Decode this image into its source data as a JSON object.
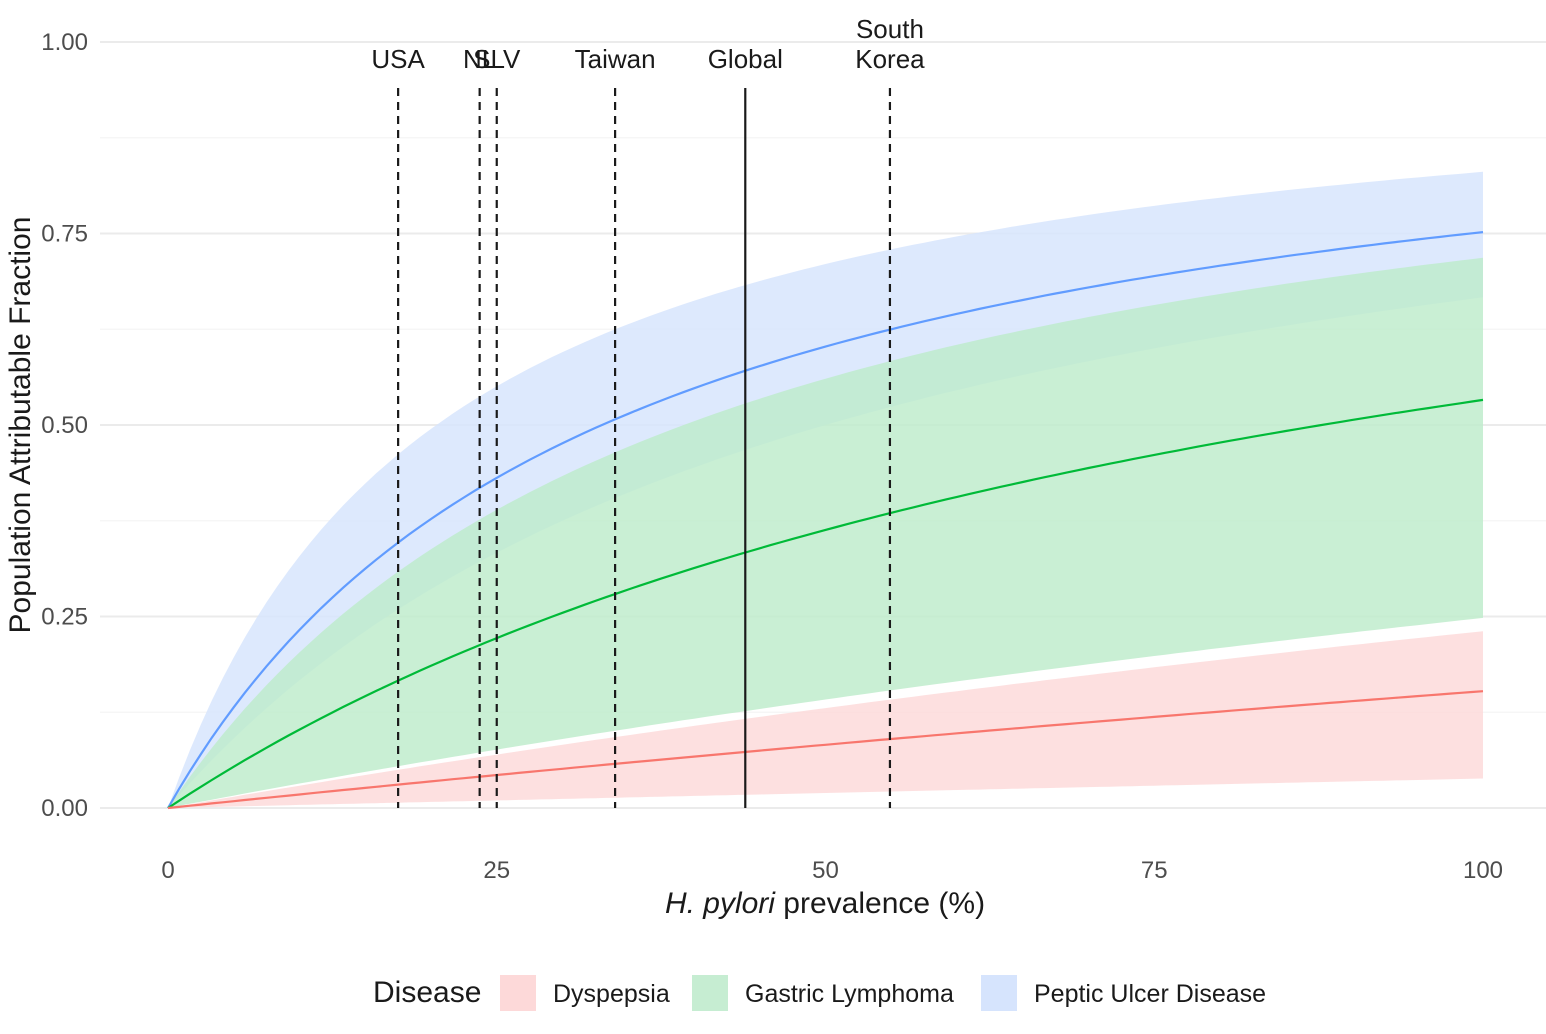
{
  "chart_data": {
    "type": "area",
    "title": "",
    "xlabel_italic": "H. pylori",
    "xlabel_rest": " prevalence (%)",
    "ylabel": "Population Attributable Fraction",
    "xlim": [
      0,
      100
    ],
    "ylim": [
      0,
      1
    ],
    "x_ticks": [
      0,
      25,
      50,
      75,
      100
    ],
    "x_tick_labels": [
      "0",
      "25",
      "50",
      "75",
      "100"
    ],
    "y_ticks": [
      0,
      0.25,
      0.5,
      0.75,
      1.0
    ],
    "y_tick_labels": [
      "0.00",
      "0.25",
      "0.50",
      "0.75",
      "1.00"
    ],
    "grid": true,
    "series": [
      {
        "name": "Peptic Ulcer Disease",
        "line_color": "#619CFF",
        "fill_color": "#D6E4FD",
        "rr": 4.03,
        "rr_lower": 3.0,
        "rr_upper": 5.9
      },
      {
        "name": "Gastric Lymphoma",
        "line_color": "#00BA38",
        "fill_color": "#BDEBCB",
        "rr": 2.14,
        "rr_lower": 1.33,
        "rr_upper": 3.55
      },
      {
        "name": "Dyspepsia",
        "line_color": "#F8766D",
        "fill_color": "#FDD9D9",
        "rr": 1.18,
        "rr_lower": 1.04,
        "rr_upper": 1.3
      }
    ],
    "legend": {
      "title": "Disease",
      "position": "bottom",
      "entries": [
        {
          "label": "Dyspepsia",
          "color": "#FDD9D9"
        },
        {
          "label": "Gastric Lymphoma",
          "color": "#C6EDD2"
        },
        {
          "label": "Peptic Ulcer Disease",
          "color": "#D6E4FD"
        }
      ]
    },
    "reference_lines": [
      {
        "label": "USA",
        "x": 17.5,
        "style": "dashed"
      },
      {
        "label": "NL",
        "x": 23.7,
        "style": "dashed"
      },
      {
        "label": "SLV",
        "x": 25.0,
        "style": "dashed"
      },
      {
        "label": "Taiwan",
        "x": 34.0,
        "style": "dashed"
      },
      {
        "label": "Global",
        "x": 43.9,
        "style": "solid"
      },
      {
        "label": "South Korea",
        "label_lines": [
          "South",
          "Korea"
        ],
        "x": 54.9,
        "style": "dashed"
      }
    ]
  }
}
